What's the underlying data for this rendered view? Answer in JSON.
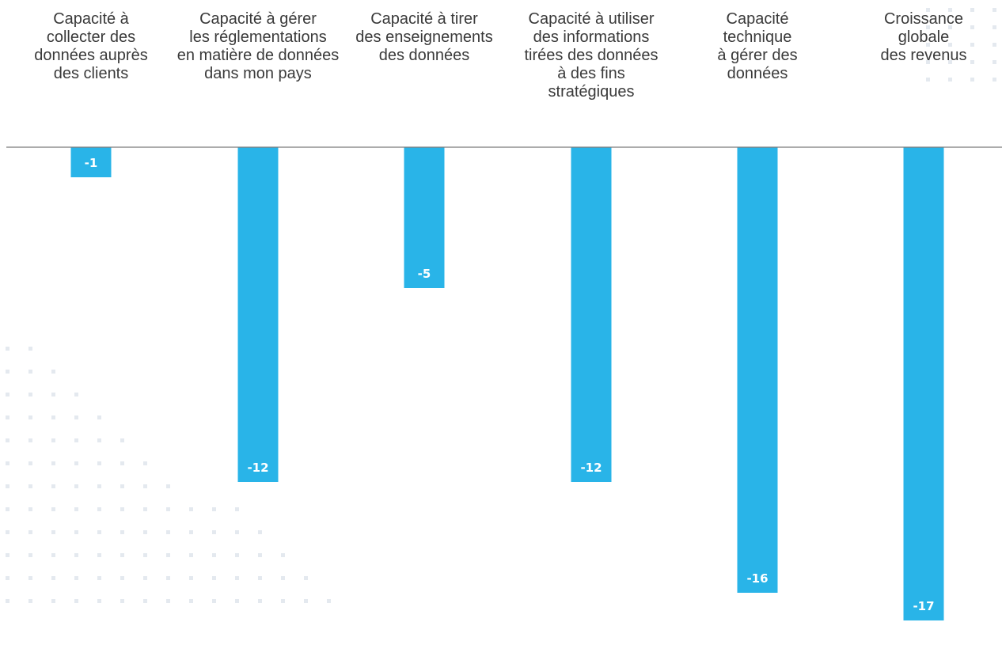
{
  "chart_data": {
    "type": "bar",
    "orientation": "vertical-downward",
    "categories": [
      "Capacité à collecter des données auprès des clients",
      "Capacité à gérer les réglementations en matière de données dans mon pays",
      "Capacité à tirer des enseignements des données",
      "Capacité à utiliser des informations tirées des données à des fins stratégiques",
      "Capacité technique à gérer des données",
      "Croissance globale des revenus"
    ],
    "category_lines": [
      [
        "Capacité à",
        "collecter des",
        "données auprès",
        "des clients"
      ],
      [
        "Capacité à gérer",
        "les réglementations",
        "en matière de données",
        "dans mon pays"
      ],
      [
        "Capacité à tirer",
        "des enseignements",
        "des données"
      ],
      [
        "Capacité à utiliser",
        "des informations",
        "tirées des données",
        "à des fins",
        "stratégiques"
      ],
      [
        "Capacité",
        "technique",
        "à gérer des",
        "données"
      ],
      [
        "Croissance",
        "globale",
        "des revenus"
      ]
    ],
    "values": [
      -1,
      -12,
      -5,
      -12,
      -16,
      -17
    ],
    "value_labels": [
      "-1",
      "-12",
      "-5",
      "-12",
      "-16",
      "-17"
    ],
    "ylim": [
      -17,
      0
    ],
    "grid": false,
    "baseline": true,
    "colors": {
      "bar": "#29b4e8",
      "baseline": "#7a7a7a",
      "label_text": "#3a3a3a",
      "value_text": "#ffffff",
      "dots": "#e4e9ef"
    }
  }
}
